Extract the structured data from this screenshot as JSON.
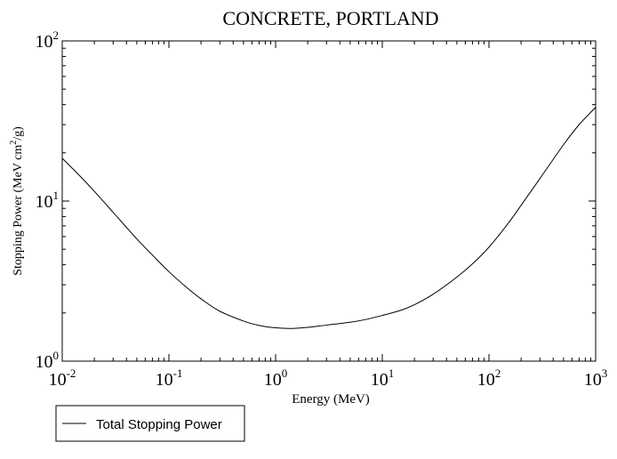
{
  "chart_data": {
    "type": "line",
    "title": "CONCRETE, PORTLAND",
    "xlabel": "Energy (MeV)",
    "ylabel": {
      "prefix": "Stopping Power (MeV cm",
      "superscript": "2",
      "suffix": "/g)"
    },
    "xscale": "log",
    "yscale": "log",
    "xlim": [
      0.01,
      1000
    ],
    "ylim": [
      1,
      100
    ],
    "x_ticks": [
      {
        "value": 0.01,
        "base": "10",
        "exp": "-2"
      },
      {
        "value": 0.1,
        "base": "10",
        "exp": "-1"
      },
      {
        "value": 1,
        "base": "10",
        "exp": "0"
      },
      {
        "value": 10,
        "base": "10",
        "exp": "1"
      },
      {
        "value": 100,
        "base": "10",
        "exp": "2"
      },
      {
        "value": 1000,
        "base": "10",
        "exp": "3"
      }
    ],
    "y_ticks": [
      {
        "value": 1,
        "base": "10",
        "exp": "0"
      },
      {
        "value": 10,
        "base": "10",
        "exp": "1"
      },
      {
        "value": 100,
        "base": "10",
        "exp": "2"
      }
    ],
    "grid": false,
    "legend_position": "bottom-left, below plot",
    "series": [
      {
        "name": "Total Stopping Power",
        "color": "#000000",
        "x": [
          0.01,
          0.015,
          0.02,
          0.03,
          0.05,
          0.07,
          0.1,
          0.15,
          0.2,
          0.3,
          0.5,
          0.7,
          1,
          1.4,
          2,
          3,
          5,
          7,
          10,
          15,
          20,
          30,
          50,
          70,
          100,
          150,
          200,
          300,
          500,
          700,
          1000
        ],
        "y": [
          18.5,
          14.1,
          11.5,
          8.5,
          5.8,
          4.6,
          3.62,
          2.85,
          2.45,
          2.05,
          1.78,
          1.67,
          1.615,
          1.6,
          1.625,
          1.68,
          1.75,
          1.82,
          1.93,
          2.08,
          2.25,
          2.62,
          3.35,
          4.05,
          5.15,
          7.2,
          9.4,
          13.8,
          22.5,
          30.0,
          38.5
        ]
      }
    ]
  }
}
